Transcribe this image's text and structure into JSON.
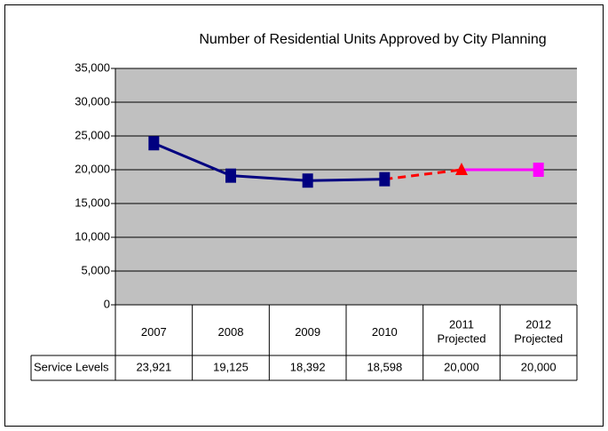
{
  "chart_data": {
    "type": "line",
    "title": "Number of Residential Units Approved by City Planning",
    "categories": [
      "2007",
      "2008",
      "2009",
      "2010",
      "2011\nProjected",
      "2012\nProjected"
    ],
    "series": [
      {
        "name": "Service Levels",
        "color": "#000080",
        "values": [
          23921,
          19125,
          18392,
          18598,
          20000,
          20000
        ],
        "value_labels": [
          "23,921",
          "19,125",
          "18,392",
          "18,598",
          "20,000",
          "20,000"
        ],
        "point_colors": [
          "#000080",
          "#000080",
          "#000080",
          "#000080",
          "#ff0000",
          "#ff00ff"
        ],
        "point_markers": [
          "square",
          "square",
          "square",
          "square",
          "triangle",
          "square"
        ],
        "segment_styles": [
          "solid",
          "solid",
          "solid",
          "dashed",
          "solid"
        ]
      }
    ],
    "ylim": [
      0,
      35000
    ],
    "yticks": [
      0,
      {
        "value": 5000,
        "label": "5,000"
      },
      {
        "value": 10000,
        "label": "10,000"
      },
      {
        "value": 15000,
        "label": "15,000"
      },
      {
        "value": 20000,
        "label": "20,000"
      },
      {
        "value": 25000,
        "label": "25,000"
      },
      {
        "value": 30000,
        "label": "30,000"
      },
      {
        "value": 35000,
        "label": "35,000"
      }
    ],
    "grid": true,
    "plot_background": "#c0c0c0"
  }
}
